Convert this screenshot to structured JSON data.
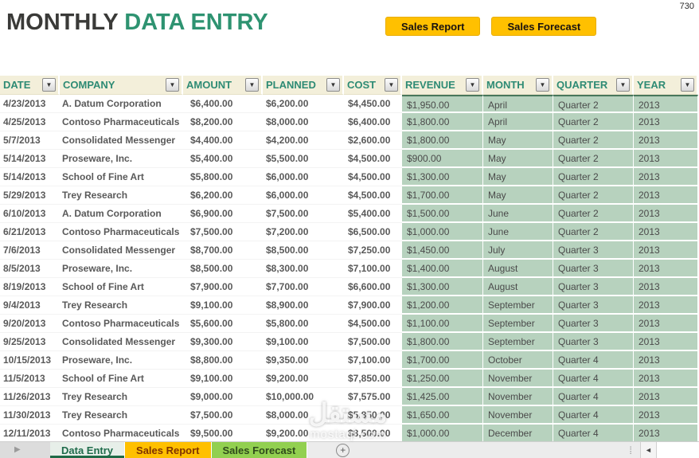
{
  "page": {
    "corner_number": "730"
  },
  "header": {
    "title_primary": "MONTHLY",
    "title_secondary": "DATA ENTRY",
    "buttons": [
      {
        "label": "Sales Report"
      },
      {
        "label": "Sales Forecast"
      }
    ]
  },
  "table": {
    "columns": [
      "DATE",
      "COMPANY",
      "AMOUNT",
      "PLANNED",
      "COST",
      "REVENUE",
      "MONTH",
      "QUARTER",
      "YEAR"
    ],
    "rows": [
      [
        "4/23/2013",
        "A. Datum Corporation",
        "$6,400.00",
        "$6,200.00",
        "$4,450.00",
        "$1,950.00",
        "April",
        "Quarter 2",
        "2013"
      ],
      [
        "4/25/2013",
        "Contoso Pharmaceuticals",
        "$8,200.00",
        "$8,000.00",
        "$6,400.00",
        "$1,800.00",
        "April",
        "Quarter 2",
        "2013"
      ],
      [
        "5/7/2013",
        "Consolidated Messenger",
        "$4,400.00",
        "$4,200.00",
        "$2,600.00",
        "$1,800.00",
        "May",
        "Quarter 2",
        "2013"
      ],
      [
        "5/14/2013",
        "Proseware, Inc.",
        "$5,400.00",
        "$5,500.00",
        "$4,500.00",
        "$900.00",
        "May",
        "Quarter 2",
        "2013"
      ],
      [
        "5/14/2013",
        "School of Fine Art",
        "$5,800.00",
        "$6,000.00",
        "$4,500.00",
        "$1,300.00",
        "May",
        "Quarter 2",
        "2013"
      ],
      [
        "5/29/2013",
        "Trey Research",
        "$6,200.00",
        "$6,000.00",
        "$4,500.00",
        "$1,700.00",
        "May",
        "Quarter 2",
        "2013"
      ],
      [
        "6/10/2013",
        "A. Datum Corporation",
        "$6,900.00",
        "$7,500.00",
        "$5,400.00",
        "$1,500.00",
        "June",
        "Quarter 2",
        "2013"
      ],
      [
        "6/21/2013",
        "Contoso Pharmaceuticals",
        "$7,500.00",
        "$7,200.00",
        "$6,500.00",
        "$1,000.00",
        "June",
        "Quarter 2",
        "2013"
      ],
      [
        "7/6/2013",
        "Consolidated Messenger",
        "$8,700.00",
        "$8,500.00",
        "$7,250.00",
        "$1,450.00",
        "July",
        "Quarter 3",
        "2013"
      ],
      [
        "8/5/2013",
        "Proseware, Inc.",
        "$8,500.00",
        "$8,300.00",
        "$7,100.00",
        "$1,400.00",
        "August",
        "Quarter 3",
        "2013"
      ],
      [
        "8/19/2013",
        "School of Fine Art",
        "$7,900.00",
        "$7,700.00",
        "$6,600.00",
        "$1,300.00",
        "August",
        "Quarter 3",
        "2013"
      ],
      [
        "9/4/2013",
        "Trey Research",
        "$9,100.00",
        "$8,900.00",
        "$7,900.00",
        "$1,200.00",
        "September",
        "Quarter 3",
        "2013"
      ],
      [
        "9/20/2013",
        "Contoso Pharmaceuticals",
        "$5,600.00",
        "$5,800.00",
        "$4,500.00",
        "$1,100.00",
        "September",
        "Quarter 3",
        "2013"
      ],
      [
        "9/25/2013",
        "Consolidated Messenger",
        "$9,300.00",
        "$9,100.00",
        "$7,500.00",
        "$1,800.00",
        "September",
        "Quarter 3",
        "2013"
      ],
      [
        "10/15/2013",
        "Proseware, Inc.",
        "$8,800.00",
        "$9,350.00",
        "$7,100.00",
        "$1,700.00",
        "October",
        "Quarter 4",
        "2013"
      ],
      [
        "11/5/2013",
        "School of Fine Art",
        "$9,100.00",
        "$9,200.00",
        "$7,850.00",
        "$1,250.00",
        "November",
        "Quarter 4",
        "2013"
      ],
      [
        "11/26/2013",
        "Trey Research",
        "$9,000.00",
        "$10,000.00",
        "$7,575.00",
        "$1,425.00",
        "November",
        "Quarter 4",
        "2013"
      ],
      [
        "11/30/2013",
        "Trey Research",
        "$7,500.00",
        "$8,000.00",
        "$5,850.00",
        "$1,650.00",
        "November",
        "Quarter 4",
        "2013"
      ],
      [
        "12/11/2013",
        "Contoso Pharmaceuticals",
        "$9,500.00",
        "$9,200.00",
        "$8,500.00",
        "$1,000.00",
        "December",
        "Quarter 4",
        "2013"
      ]
    ]
  },
  "sheet_bar": {
    "tabs": [
      {
        "label": "Data Entry",
        "active": true,
        "color": "#E7EFE9",
        "text_color": "#1F6B4B"
      },
      {
        "label": "Sales Report",
        "active": false,
        "color": "#FFC000",
        "text_color": "#7F3300"
      },
      {
        "label": "Sales Forecast",
        "active": false,
        "color": "#92D050",
        "text_color": "#2F4B1C"
      }
    ]
  },
  "icons": {
    "chevron_down": "▼",
    "nav_right": "▶",
    "scroll_left": "◄",
    "add": "+",
    "dots": "⁞"
  },
  "watermark": {
    "arabic": "مستقل",
    "domain": "mostaql.com"
  },
  "colors": {
    "accent_gold": "#FFC000",
    "header_teal": "#2E8B74",
    "header_cream": "#F3EFDA",
    "band_green": "#B7D2BE",
    "tab_green": "#92D050",
    "title_green": "#2E9371",
    "title_dark": "#3A3A38"
  }
}
